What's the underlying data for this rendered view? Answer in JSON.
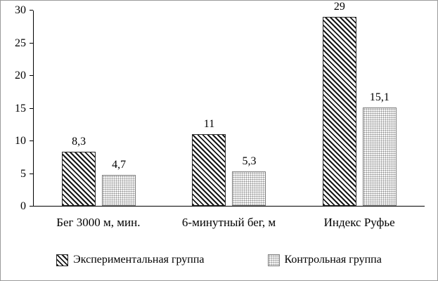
{
  "chart_data": {
    "type": "bar",
    "title": "",
    "categories": [
      "Бег 3000 м, мин.",
      "6-минутный бег, м",
      "Индекс Руфье"
    ],
    "series": [
      {
        "name": "Экспериментальная группа",
        "values": [
          8.3,
          11,
          29
        ],
        "value_labels": [
          "8,3",
          "11",
          "29"
        ],
        "pattern": "diagonal-hatch"
      },
      {
        "name": "Контрольная группа",
        "values": [
          4.7,
          5.3,
          15.1
        ],
        "value_labels": [
          "4,7",
          "5,3",
          "15,1"
        ],
        "pattern": "dots"
      }
    ],
    "xlabel": "",
    "ylabel": "",
    "ylim": [
      0,
      30
    ],
    "yticks": [
      0,
      5,
      10,
      15,
      20,
      25,
      30
    ],
    "grid": false,
    "legend_position": "bottom",
    "data_labels": true
  },
  "colors": {
    "background": "#ffffff",
    "border": "#9a9a9a",
    "axis": "#000000",
    "text": "#000000",
    "hatch_series": "#161616",
    "dots_series": "#8f8f8f"
  }
}
